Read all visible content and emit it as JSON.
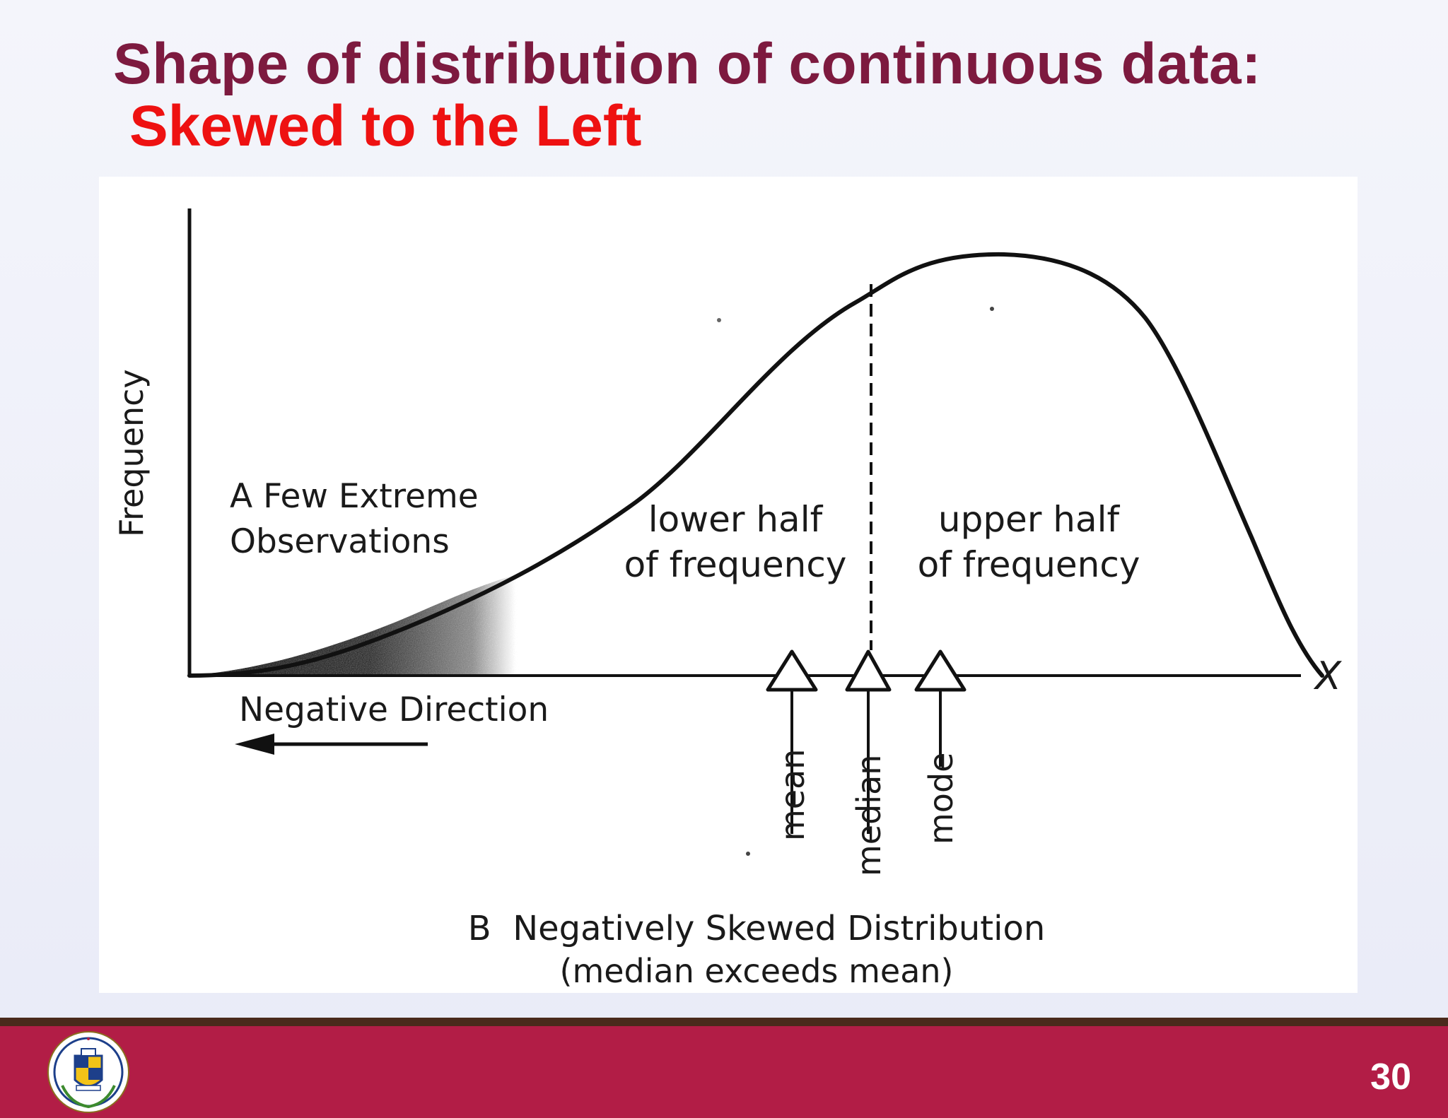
{
  "slide": {
    "title_line1": "Shape of distribution of continuous data:",
    "title_line2": "Skewed to the Left",
    "page_number": "30"
  },
  "diagram": {
    "y_axis_label": "Frequency",
    "x_axis_label": "X",
    "tail_annotation_line1": "A Few Extreme",
    "tail_annotation_line2": "Observations",
    "direction_label": "Negative Direction",
    "lower_half_line1": "lower half",
    "lower_half_line2": "of frequency",
    "upper_half_line1": "upper half",
    "upper_half_line2": "of frequency",
    "markers": {
      "mean": "mean",
      "median": "median",
      "mode": "mode"
    },
    "caption_line1": "B  Negatively Skewed Distribution",
    "caption_line2": "(median exceeds mean)"
  },
  "colors": {
    "title_primary": "#7d1a3f",
    "title_accent": "#ee1111",
    "footer": "#b21d46",
    "footer_stripe": "#4a2a1c"
  },
  "icons": {
    "logo": "university-seal-icon"
  }
}
